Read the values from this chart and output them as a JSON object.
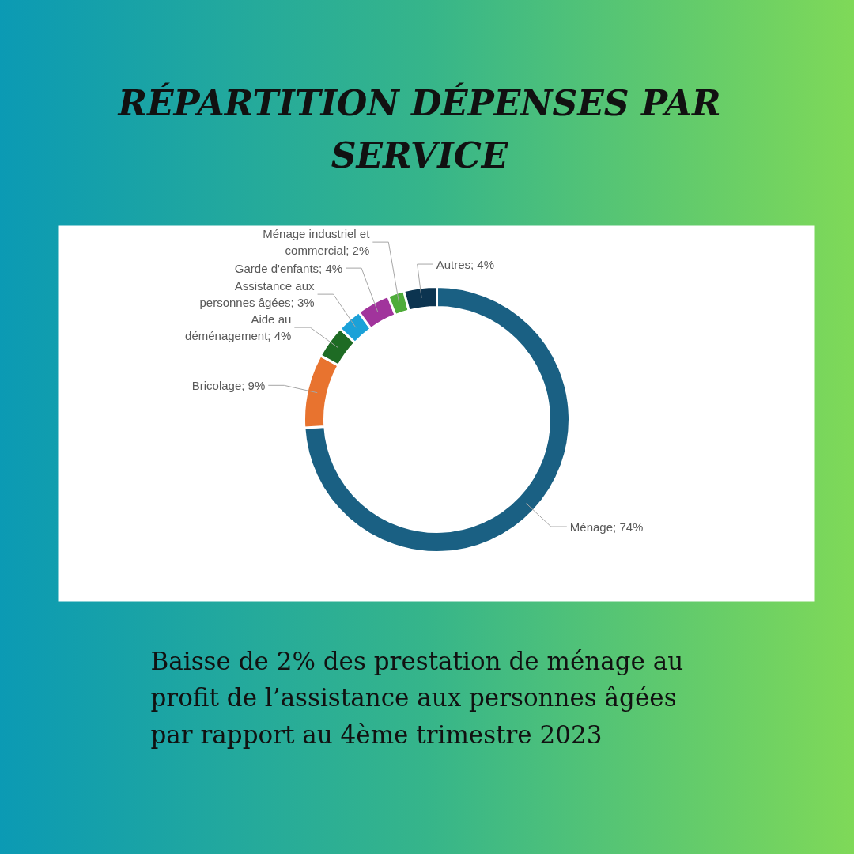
{
  "chart_data": {
    "type": "donut",
    "title": "RÉPARTITION DÉPENSES PAR SERVICE",
    "categories": [
      "Ménage",
      "Bricolage",
      "Aide au déménagement",
      "Assistance aux personnes âgées",
      "Garde d'enfants",
      "Ménage industriel et commercial",
      "Autres"
    ],
    "values": [
      74,
      9,
      4,
      3,
      4,
      2,
      4
    ],
    "colors": [
      "#1a6083",
      "#e8732f",
      "#1e6b24",
      "#1ba1d8",
      "#a1349c",
      "#4fac3a",
      "#0c3450"
    ],
    "value_labels": [
      "74%",
      "9%",
      "4%",
      "3%",
      "4%",
      "2%",
      "4%"
    ],
    "annotations": [
      "Baisse de 2% des prestation de ménage au profit de l’assistance aux personnes âgées par rapport au 4ème trimestre 2023"
    ]
  }
}
